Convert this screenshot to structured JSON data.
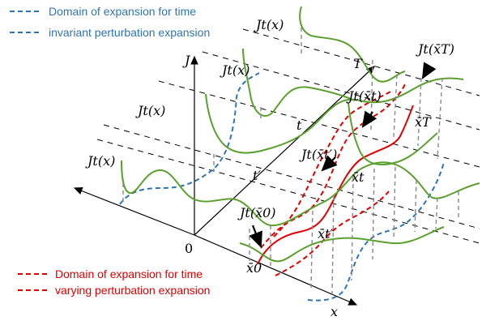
{
  "legend_top": {
    "line1": "Domain of expansion for time",
    "line2": "invariant perturbation expansion",
    "color": "#2e75b6"
  },
  "legend_bottom": {
    "line1": "Domain of expansion for time",
    "line2": "varying perturbation expansion",
    "color": "#e00000"
  },
  "axes": {
    "j_label": "J",
    "t_axis_label": "T",
    "t_label": "t",
    "t_prime_label": "t′",
    "x_label": "x",
    "origin_label": "0"
  },
  "labels": {
    "jt_x_1": "Jt(x)",
    "jt_x_2": "Jt(x)",
    "jt_x_3": "Jt(x)",
    "jt_x_4": "Jt(x)",
    "jt_xbar_T": "Jt(x̄T)",
    "jt_xbar_t": "Jt(x̄t)",
    "jt_xbar_tprime": "Jt(x̄t′)",
    "jt_xbar_0": "Jt(x̄0)",
    "xbar_T": "x̄T",
    "xbar_t": "x̄t",
    "xbar_tprime": "x̄t′",
    "x0": "x̄0"
  },
  "colors": {
    "curve": "#5aa02c",
    "red": "#e00000",
    "blue": "#2e75b6",
    "axis": "#000000",
    "drop": "#777777"
  }
}
